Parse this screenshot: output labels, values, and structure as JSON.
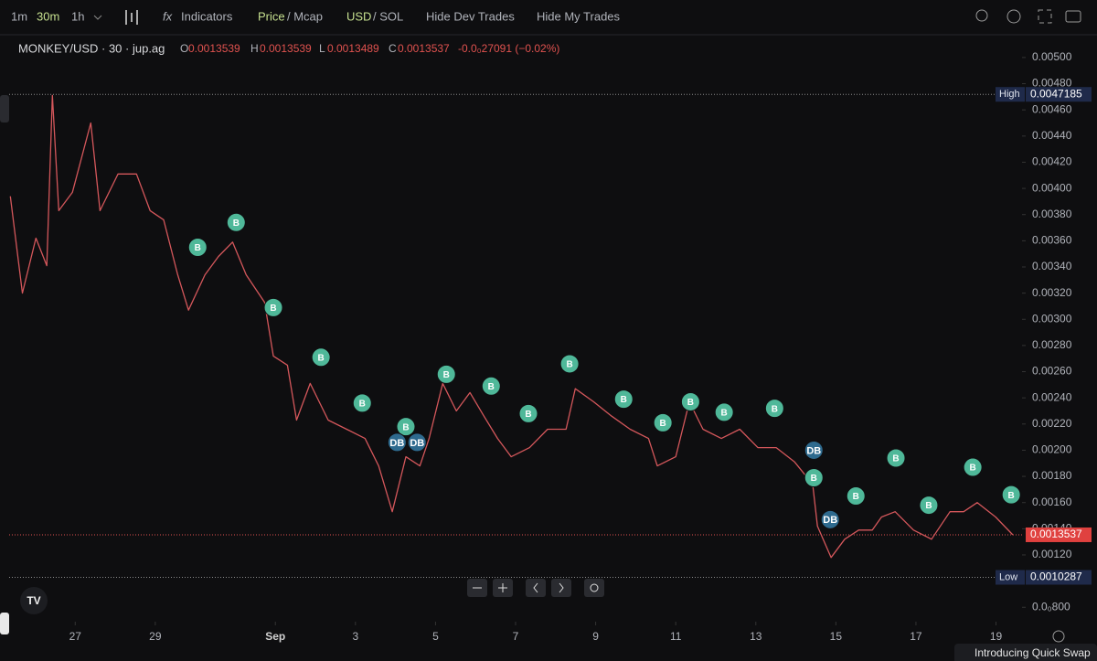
{
  "toolbar": {
    "intervals": [
      "1m",
      "30m",
      "1h"
    ],
    "indicators": "Indicators",
    "price": "Price",
    "mcap": "/ Mcap",
    "usd": "USD",
    "sol": "/ SOL",
    "hide_dev": "Hide Dev Trades",
    "hide_my": "Hide My Trades"
  },
  "legend": {
    "symbol": "MONKEY/USD · 30 · jup.ag",
    "o_label": "O",
    "o": "0.0013539",
    "h_label": "H",
    "h": "0.0013539",
    "l_label": "L",
    "l": "0.0013489",
    "c_label": "C",
    "c": "0.0013537",
    "change": "-0.0₀27091 (−0.02%)"
  },
  "footer": {
    "quick_swap": "Introducing Quick Swap"
  },
  "chart_data": {
    "type": "line",
    "color": "#d4575b",
    "x": [
      25.38,
      25.68,
      26.02,
      26.29,
      26.43,
      26.59,
      26.93,
      27.39,
      27.62,
      28.07,
      28.53,
      28.87,
      29.21,
      29.56,
      29.83,
      30.24,
      30.58,
      30.93,
      31.27,
      31.73,
      31.95,
      32.3,
      32.53,
      32.87,
      33.32,
      33.78,
      34.24,
      34.58,
      34.92,
      35.26,
      35.61,
      35.84,
      36.18,
      36.52,
      36.86,
      37.21,
      37.55,
      37.89,
      38.35,
      38.8,
      39.26,
      39.49,
      39.95,
      40.4,
      40.86,
      41.32,
      41.54,
      42.0,
      42.34,
      42.68,
      43.14,
      43.6,
      44.05,
      44.51,
      44.97,
      45.42,
      45.54,
      45.88,
      46.22,
      46.57,
      46.91,
      47.14,
      47.48,
      47.94,
      48.39,
      48.85,
      49.19,
      49.53,
      49.99,
      50.42
    ],
    "values": [
      0.00394,
      0.0032,
      0.00362,
      0.00341,
      0.00471,
      0.00383,
      0.00397,
      0.0045,
      0.00383,
      0.00411,
      0.00411,
      0.00383,
      0.00376,
      0.00334,
      0.00307,
      0.00334,
      0.00348,
      0.00359,
      0.00334,
      0.00313,
      0.00272,
      0.00265,
      0.00223,
      0.00251,
      0.00223,
      0.00216,
      0.00209,
      0.00188,
      0.00153,
      0.00195,
      0.00188,
      0.00209,
      0.00251,
      0.0023,
      0.00244,
      0.00226,
      0.00209,
      0.00195,
      0.00202,
      0.00216,
      0.00216,
      0.00247,
      0.00237,
      0.00226,
      0.00216,
      0.00209,
      0.00188,
      0.00195,
      0.00237,
      0.00216,
      0.00209,
      0.00216,
      0.00202,
      0.00202,
      0.00191,
      0.00174,
      0.00142,
      0.00118,
      0.00132,
      0.00139,
      0.00139,
      0.00149,
      0.00153,
      0.00139,
      0.00132,
      0.00153,
      0.00153,
      0.0016,
      0.00149,
      0.0013537
    ],
    "markers": [
      {
        "x": 30.06,
        "y": 0.00355,
        "label": "B"
      },
      {
        "x": 31.02,
        "y": 0.00374,
        "label": "B"
      },
      {
        "x": 31.95,
        "y": 0.00309,
        "label": "B"
      },
      {
        "x": 33.14,
        "y": 0.00271,
        "label": "B"
      },
      {
        "x": 34.17,
        "y": 0.00236,
        "label": "B"
      },
      {
        "x": 35.26,
        "y": 0.00218,
        "label": "B"
      },
      {
        "x": 35.04,
        "y": 0.00206,
        "label": "DB"
      },
      {
        "x": 35.54,
        "y": 0.00206,
        "label": "DB"
      },
      {
        "x": 36.27,
        "y": 0.00258,
        "label": "B"
      },
      {
        "x": 37.39,
        "y": 0.00249,
        "label": "B"
      },
      {
        "x": 38.32,
        "y": 0.00228,
        "label": "B"
      },
      {
        "x": 39.35,
        "y": 0.00266,
        "label": "B"
      },
      {
        "x": 40.7,
        "y": 0.00239,
        "label": "B"
      },
      {
        "x": 41.68,
        "y": 0.00221,
        "label": "B"
      },
      {
        "x": 42.37,
        "y": 0.00237,
        "label": "B"
      },
      {
        "x": 43.21,
        "y": 0.00229,
        "label": "B"
      },
      {
        "x": 44.47,
        "y": 0.00232,
        "label": "B"
      },
      {
        "x": 45.45,
        "y": 0.002,
        "label": "DB"
      },
      {
        "x": 45.45,
        "y": 0.00179,
        "label": "B"
      },
      {
        "x": 45.86,
        "y": 0.00147,
        "label": "DB"
      },
      {
        "x": 46.5,
        "y": 0.00165,
        "label": "B"
      },
      {
        "x": 47.5,
        "y": 0.00194,
        "label": "B"
      },
      {
        "x": 48.32,
        "y": 0.00158,
        "label": "B"
      },
      {
        "x": 49.42,
        "y": 0.00187,
        "label": "B"
      },
      {
        "x": 50.38,
        "y": 0.00166,
        "label": "B"
      }
    ],
    "high_label": "High",
    "high": 0.0047185,
    "low_label": "Low",
    "low": 0.0010287,
    "last": 0.0013537,
    "xlim": [
      25.35,
      50.65
    ],
    "xticks": [
      27,
      29,
      {
        "value": 32,
        "label": "Sep"
      },
      {
        "value": 34,
        "label": "3"
      },
      {
        "value": 36,
        "label": "5"
      },
      {
        "value": 38,
        "label": "7"
      },
      {
        "value": 40,
        "label": "9"
      },
      {
        "value": 42,
        "label": "11"
      },
      {
        "value": 44,
        "label": "13"
      },
      {
        "value": 46,
        "label": "15"
      },
      {
        "value": 48,
        "label": "17"
      },
      {
        "value": 50,
        "label": "19"
      }
    ],
    "ylim": [
      0.00069,
      0.00516
    ],
    "yticks": [
      {
        "value": 0.005,
        "label": "0.00500"
      },
      {
        "value": 0.0048,
        "label": "0.00480"
      },
      {
        "value": 0.0046,
        "label": "0.00460"
      },
      {
        "value": 0.0044,
        "label": "0.00440"
      },
      {
        "value": 0.0042,
        "label": "0.00420"
      },
      {
        "value": 0.004,
        "label": "0.00400"
      },
      {
        "value": 0.0038,
        "label": "0.00380"
      },
      {
        "value": 0.0036,
        "label": "0.00360"
      },
      {
        "value": 0.0034,
        "label": "0.00340"
      },
      {
        "value": 0.0032,
        "label": "0.00320"
      },
      {
        "value": 0.003,
        "label": "0.00300"
      },
      {
        "value": 0.0028,
        "label": "0.00280"
      },
      {
        "value": 0.0026,
        "label": "0.00260"
      },
      {
        "value": 0.0024,
        "label": "0.00240"
      },
      {
        "value": 0.0022,
        "label": "0.00220"
      },
      {
        "value": 0.002,
        "label": "0.00200"
      },
      {
        "value": 0.0018,
        "label": "0.00180"
      },
      {
        "value": 0.0016,
        "label": "0.00160"
      },
      {
        "value": 0.0014,
        "label": "0.00140"
      },
      {
        "value": 0.0012,
        "label": "0.00120"
      },
      {
        "value": 0.0008,
        "label": "0.0₀800"
      }
    ]
  }
}
